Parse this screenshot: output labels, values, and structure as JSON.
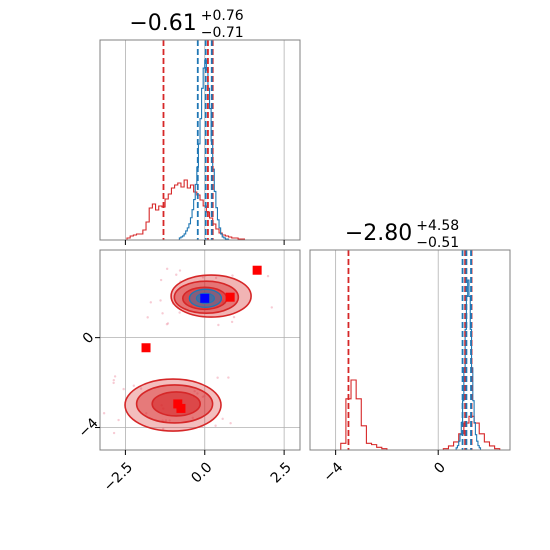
{
  "chart_data": {
    "type": "corner",
    "colors": {
      "red": "#d62728",
      "blue": "#1f77b4",
      "grid": "#b0b0b0"
    },
    "param1": {
      "title": {
        "median": "−0.61",
        "upper": "+0.76",
        "lower": "−0.71"
      },
      "xlim": [
        -3.3,
        3.0
      ],
      "ticks": [
        -2.5,
        0.0,
        2.5
      ],
      "tick_labels": [
        "−2.5",
        "0.0",
        "2.5"
      ],
      "red_quantiles": [
        -1.3,
        0.1,
        0.25
      ],
      "blue_quantiles": [
        -0.22,
        0.03,
        0.22
      ]
    },
    "param2": {
      "title": {
        "median": "−2.80",
        "upper": "+4.58",
        "lower": "−0.51"
      },
      "xlim": [
        -5.0,
        2.8
      ],
      "ticks": [
        -4,
        0
      ],
      "tick_labels": [
        "−4",
        "0"
      ],
      "red_quantiles": [
        -3.5,
        1.05,
        1.3
      ],
      "blue_quantiles": [
        0.95,
        1.1,
        1.28
      ]
    },
    "joint": {
      "xlim": [
        -3.3,
        3.0
      ],
      "ylim": [
        -5.0,
        3.9
      ],
      "yticks": [
        -4,
        0
      ],
      "ytick_labels": [
        "−4",
        "0"
      ],
      "red_markers": [
        [
          -1.85,
          -0.45
        ],
        [
          -0.85,
          -2.95
        ],
        [
          -0.75,
          -3.15
        ],
        [
          0.8,
          1.8
        ],
        [
          1.65,
          3.0
        ]
      ],
      "blue_markers": [
        [
          0.0,
          1.75
        ]
      ]
    },
    "hist1_red": {
      "x0": -2.45,
      "dx": 0.1,
      "values": [
        2,
        4,
        5,
        6,
        6,
        10,
        18,
        32,
        36,
        30,
        34,
        33,
        41,
        46,
        52,
        55,
        57,
        53,
        60,
        52,
        55,
        48,
        45,
        40,
        34,
        28,
        22,
        16,
        11,
        7,
        5,
        4,
        3,
        2,
        2,
        1,
        1
      ]
    },
    "hist1_blue": {
      "x0": -0.8,
      "dx": 0.05,
      "values": [
        2,
        3,
        4,
        6,
        9,
        12,
        16,
        22,
        30,
        40,
        55,
        72,
        95,
        120,
        150,
        170,
        178,
        168,
        150,
        130,
        98,
        70,
        48,
        32,
        20,
        12,
        6,
        3,
        2,
        1,
        1
      ]
    },
    "hist2_red": {
      "x0": -3.8,
      "dx": 0.2,
      "values": [
        5,
        38,
        52,
        38,
        18,
        5,
        4,
        2,
        1,
        0,
        0,
        0,
        0,
        0,
        0,
        0,
        0,
        0,
        0,
        0,
        1,
        3,
        6,
        12,
        20,
        25,
        20,
        12,
        6,
        3,
        1
      ]
    },
    "hist2_blue": {
      "x0": 0.7,
      "dx": 0.05,
      "values": [
        2,
        4,
        8,
        14,
        25,
        45,
        75,
        110,
        140,
        155,
        140,
        110,
        75,
        45,
        25,
        14,
        8,
        4,
        2
      ]
    }
  }
}
